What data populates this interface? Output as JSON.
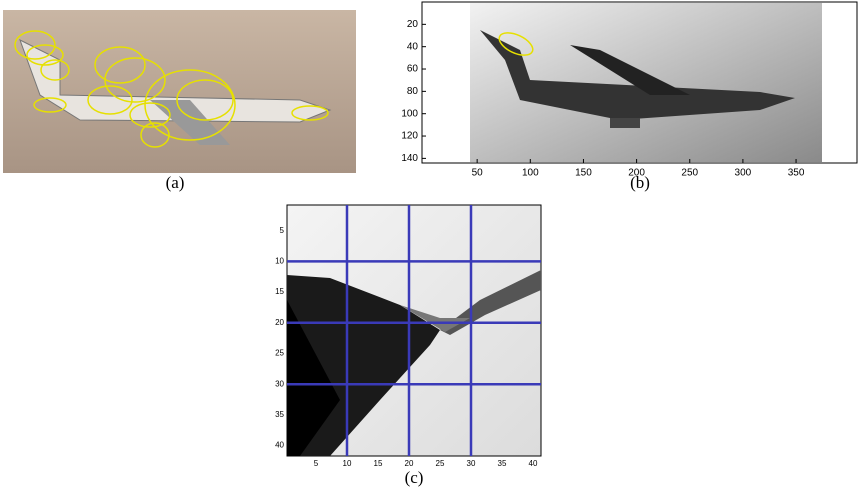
{
  "panels": [
    {
      "label": "(a)"
    },
    {
      "label": "(b)",
      "xticks": [
        50,
        100,
        150,
        200,
        250,
        300,
        350
      ],
      "yticks": [
        20,
        40,
        60,
        80,
        100,
        120,
        140
      ]
    },
    {
      "label": "(c)",
      "xticks": [
        5,
        10,
        15,
        20,
        25,
        30,
        35,
        40
      ],
      "yticks": [
        5,
        10,
        15,
        20,
        25,
        30,
        35,
        40
      ]
    }
  ]
}
